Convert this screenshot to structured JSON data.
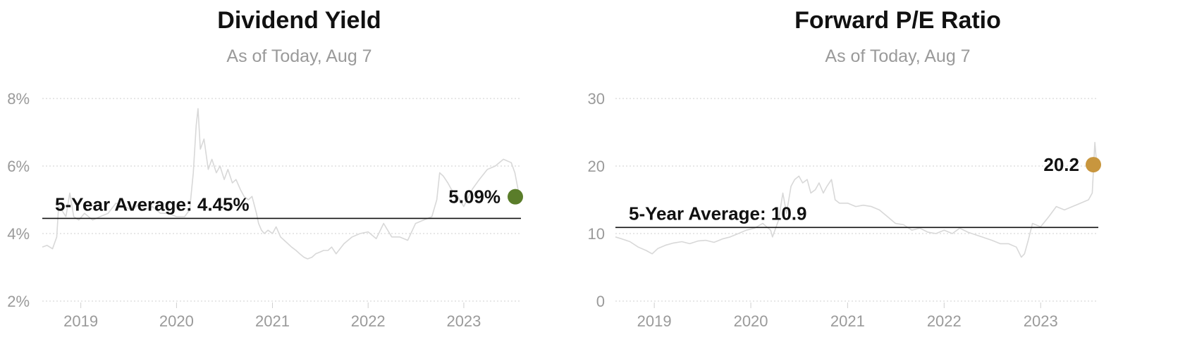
{
  "chart_data": [
    {
      "type": "line",
      "title": "Dividend Yield",
      "subtitle": "As of Today, Aug 7",
      "xlabel": "",
      "ylabel": "",
      "x_tick_labels": [
        "2019",
        "2020",
        "2021",
        "2022",
        "2023"
      ],
      "y_tick_labels": [
        "2%",
        "4%",
        "6%",
        "8%"
      ],
      "y_ticks": [
        2,
        4,
        6,
        8
      ],
      "ylim": [
        2,
        8
      ],
      "xlim": [
        "2018-08-07",
        "2023-08-07"
      ],
      "grid": true,
      "line_color": "#d8d8d8",
      "average": {
        "label": "5-Year Average: 4.45%",
        "value": 4.45
      },
      "current": {
        "label": "5.09%",
        "value": 5.09,
        "color": "#5a7d2a"
      },
      "series": [
        {
          "x": [
            "2018-08-07",
            "2018-08-25",
            "2018-09-15",
            "2018-10-01",
            "2018-10-08",
            "2018-10-20",
            "2018-11-05",
            "2018-11-20",
            "2018-12-05",
            "2018-12-24",
            "2019-01-15",
            "2019-02-15",
            "2019-03-15",
            "2019-04-15",
            "2019-05-15",
            "2019-06-15",
            "2019-07-15",
            "2019-08-15",
            "2019-09-01",
            "2019-10-01",
            "2019-11-01",
            "2019-12-01",
            "2020-01-01",
            "2020-02-01",
            "2020-02-20",
            "2020-03-05",
            "2020-03-16",
            "2020-03-23",
            "2020-04-01",
            "2020-04-15",
            "2020-05-01",
            "2020-05-15",
            "2020-06-01",
            "2020-06-15",
            "2020-07-01",
            "2020-07-15",
            "2020-08-01",
            "2020-08-15",
            "2020-09-01",
            "2020-09-15",
            "2020-10-01",
            "2020-10-15",
            "2020-11-01",
            "2020-11-09",
            "2020-11-20",
            "2020-12-01",
            "2020-12-15",
            "2021-01-01",
            "2021-01-15",
            "2021-02-01",
            "2021-02-15",
            "2021-03-01",
            "2021-03-15",
            "2021-04-01",
            "2021-04-15",
            "2021-05-01",
            "2021-05-15",
            "2021-06-01",
            "2021-06-15",
            "2021-07-01",
            "2021-07-15",
            "2021-08-01",
            "2021-08-15",
            "2021-09-01",
            "2021-10-01",
            "2021-11-01",
            "2021-12-01",
            "2022-01-01",
            "2022-02-01",
            "2022-03-01",
            "2022-04-01",
            "2022-05-01",
            "2022-06-01",
            "2022-07-01",
            "2022-08-01",
            "2022-09-01",
            "2022-09-20",
            "2022-10-01",
            "2022-10-15",
            "2022-11-01",
            "2022-11-15",
            "2022-12-01",
            "2023-01-01",
            "2023-02-01",
            "2023-03-01",
            "2023-04-01",
            "2023-05-01",
            "2023-06-01",
            "2023-07-01",
            "2023-07-15",
            "2023-08-01"
          ],
          "y": [
            3.6,
            3.65,
            3.55,
            3.9,
            4.8,
            4.7,
            4.5,
            5.2,
            4.5,
            4.4,
            4.6,
            4.4,
            4.5,
            4.6,
            4.9,
            4.8,
            4.7,
            4.9,
            4.7,
            4.8,
            4.6,
            4.6,
            4.5,
            4.5,
            4.7,
            5.8,
            7.2,
            7.7,
            6.5,
            6.8,
            5.9,
            6.2,
            5.8,
            6.0,
            5.6,
            5.9,
            5.5,
            5.6,
            5.3,
            5.1,
            5.0,
            5.1,
            4.6,
            4.3,
            4.1,
            4.0,
            4.1,
            4.0,
            4.2,
            3.9,
            3.8,
            3.7,
            3.6,
            3.5,
            3.4,
            3.3,
            3.25,
            3.3,
            3.4,
            3.45,
            3.5,
            3.5,
            3.6,
            3.4,
            3.7,
            3.9,
            4.0,
            4.05,
            3.85,
            4.3,
            3.9,
            3.9,
            3.8,
            4.3,
            4.4,
            4.5,
            5.0,
            5.8,
            5.7,
            5.5,
            5.3,
            5.2,
            4.8,
            5.3,
            5.6,
            5.9,
            6.0,
            6.2,
            6.1,
            5.8,
            5.09
          ]
        }
      ]
    },
    {
      "type": "line",
      "title": "Forward P/E Ratio",
      "subtitle": "As of Today, Aug 7",
      "xlabel": "",
      "ylabel": "",
      "x_tick_labels": [
        "2019",
        "2020",
        "2021",
        "2022",
        "2023"
      ],
      "y_tick_labels": [
        "0",
        "10",
        "20",
        "30"
      ],
      "y_ticks": [
        0,
        10,
        20,
        30
      ],
      "ylim": [
        0,
        30
      ],
      "xlim": [
        "2018-08-07",
        "2023-08-07"
      ],
      "grid": true,
      "line_color": "#d8d8d8",
      "average": {
        "label": "5-Year Average: 10.9",
        "value": 10.9
      },
      "current": {
        "label": "20.2",
        "value": 20.2,
        "color": "#c8963e"
      },
      "series": [
        {
          "x": [
            "2018-08-07",
            "2018-09-01",
            "2018-10-01",
            "2018-11-01",
            "2018-12-01",
            "2018-12-24",
            "2019-01-15",
            "2019-02-15",
            "2019-03-15",
            "2019-04-15",
            "2019-05-15",
            "2019-06-15",
            "2019-07-15",
            "2019-08-15",
            "2019-09-15",
            "2019-10-15",
            "2019-11-15",
            "2019-12-15",
            "2020-01-15",
            "2020-02-15",
            "2020-03-16",
            "2020-03-23",
            "2020-04-15",
            "2020-05-01",
            "2020-05-15",
            "2020-06-01",
            "2020-06-15",
            "2020-07-01",
            "2020-07-15",
            "2020-08-01",
            "2020-08-15",
            "2020-09-01",
            "2020-09-15",
            "2020-10-01",
            "2020-10-15",
            "2020-11-01",
            "2020-11-15",
            "2020-12-01",
            "2021-01-01",
            "2021-02-01",
            "2021-03-01",
            "2021-04-01",
            "2021-05-01",
            "2021-06-01",
            "2021-07-01",
            "2021-08-01",
            "2021-09-01",
            "2021-10-01",
            "2021-11-01",
            "2021-12-01",
            "2022-01-01",
            "2022-02-01",
            "2022-03-01",
            "2022-04-01",
            "2022-05-01",
            "2022-06-01",
            "2022-07-01",
            "2022-08-01",
            "2022-09-01",
            "2022-10-01",
            "2022-10-20",
            "2022-11-01",
            "2022-11-15",
            "2022-12-01",
            "2023-01-01",
            "2023-02-01",
            "2023-03-01",
            "2023-04-01",
            "2023-05-01",
            "2023-06-01",
            "2023-07-01",
            "2023-07-15",
            "2023-07-25",
            "2023-08-01"
          ],
          "y": [
            9.5,
            9.2,
            8.8,
            8.0,
            7.5,
            7.0,
            7.8,
            8.3,
            8.6,
            8.8,
            8.5,
            8.9,
            9.0,
            8.7,
            9.2,
            9.5,
            10.0,
            10.5,
            10.8,
            11.5,
            10.5,
            9.5,
            12.0,
            16.0,
            13.0,
            17.0,
            18.0,
            18.5,
            17.5,
            18.0,
            16.0,
            16.5,
            17.5,
            16.0,
            17.0,
            18.0,
            15.0,
            14.5,
            14.5,
            14.0,
            14.2,
            14.0,
            13.5,
            12.5,
            11.5,
            11.3,
            10.5,
            10.8,
            10.2,
            10.0,
            10.5,
            10.0,
            10.8,
            10.2,
            9.8,
            9.4,
            9.0,
            8.5,
            8.5,
            8.0,
            6.5,
            7.0,
            9.0,
            11.5,
            11.0,
            12.5,
            14.0,
            13.5,
            14.0,
            14.5,
            15.0,
            16.0,
            23.5,
            20.2
          ]
        }
      ]
    }
  ]
}
